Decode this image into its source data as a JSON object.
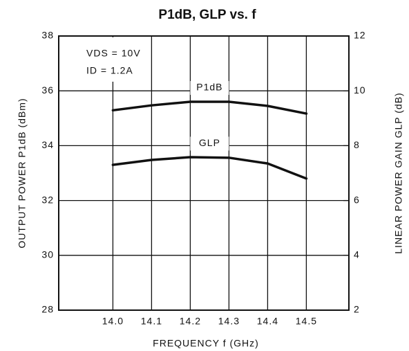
{
  "chart_data": {
    "type": "line",
    "title": "P1dB, GLP vs. f",
    "x_label": "FREQUENCY f (GHz)",
    "y_label": "OUTPUT POWER P1dB (dBm)",
    "y2_label": "LINEAR POWER GAIN GLP (dB)",
    "annotations": [
      "VDS = 10V",
      "ID = 1.2A"
    ],
    "x": [
      14.0,
      14.1,
      14.2,
      14.3,
      14.4,
      14.5
    ],
    "xlim": [
      13.86,
      14.61
    ],
    "xticks": [
      {
        "value": 14.0,
        "label": "14.0"
      },
      14.1,
      14.2,
      14.3,
      14.4,
      14.5
    ],
    "ylim": [
      28,
      38
    ],
    "yticks": [
      28,
      30,
      32,
      34,
      36,
      38
    ],
    "y2lim": [
      2,
      12
    ],
    "y2ticks": [
      2,
      4,
      6,
      8,
      10,
      12
    ],
    "grid": true,
    "series": [
      {
        "name": "P1dB",
        "color": "#111111",
        "values": [
          35.29,
          35.47,
          35.6,
          35.6,
          35.45,
          35.17
        ]
      },
      {
        "name": "GLP",
        "color": "#111111",
        "axis": "y2",
        "values": [
          7.3,
          7.48,
          7.58,
          7.56,
          7.35,
          6.8
        ]
      }
    ]
  }
}
